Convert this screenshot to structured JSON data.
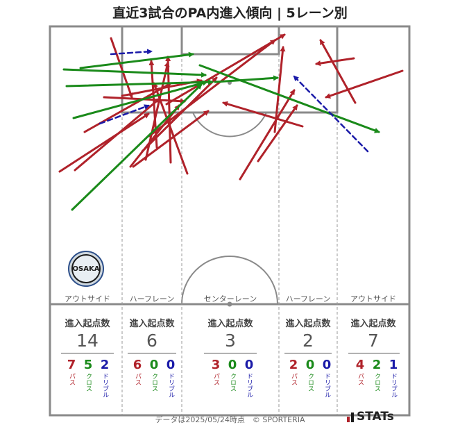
{
  "title": "直近3試合のPA内進入傾向 | 5レーン別",
  "lanes": [
    {
      "label": "アウトサイド",
      "head": "進入起点数",
      "total": "14",
      "pass": "7",
      "cross": "5",
      "dribble": "2"
    },
    {
      "label": "ハーフレーン",
      "head": "進入起点数",
      "total": "6",
      "pass": "6",
      "cross": "0",
      "dribble": "0"
    },
    {
      "label": "センターレーン",
      "head": "進入起点数",
      "total": "3",
      "pass": "3",
      "cross": "0",
      "dribble": "0"
    },
    {
      "label": "ハーフレーン",
      "head": "進入起点数",
      "total": "2",
      "pass": "2",
      "cross": "0",
      "dribble": "0"
    },
    {
      "label": "アウトサイド",
      "head": "進入起点数",
      "total": "7",
      "pass": "4",
      "cross": "2",
      "dribble": "1"
    }
  ],
  "legend": {
    "pass": "パス",
    "cross": "クロス",
    "dribble": "ドリブル"
  },
  "colors": {
    "pass": "#b0222a",
    "cross": "#1a8a1a",
    "dribble": "#1a1aa8",
    "pitch_line": "#8a8a8a"
  },
  "badge_text": "OSAKA",
  "footer": "データは2025/05/24時点　© SPORTERIA",
  "brand": "STATs",
  "arrows": [
    {
      "type": "pass",
      "from": [
        86,
        247
      ],
      "to": [
        214,
        164
      ]
    },
    {
      "type": "pass",
      "from": [
        108,
        245
      ],
      "to": [
        230,
        142
      ]
    },
    {
      "type": "pass",
      "from": [
        122,
        190
      ],
      "to": [
        246,
        120
      ]
    },
    {
      "type": "pass",
      "from": [
        160,
        55
      ],
      "to": [
        190,
        140
      ]
    },
    {
      "type": "pass",
      "from": [
        150,
        140
      ],
      "to": [
        266,
        146
      ]
    },
    {
      "type": "pass",
      "from": [
        176,
        138
      ],
      "to": [
        290,
        116
      ]
    },
    {
      "type": "pass",
      "from": [
        192,
        240
      ],
      "to": [
        300,
        160
      ]
    },
    {
      "type": "pass",
      "from": [
        205,
        218
      ],
      "to": [
        312,
        112
      ]
    },
    {
      "type": "pass",
      "from": [
        210,
        230
      ],
      "to": [
        242,
        90
      ]
    },
    {
      "type": "pass",
      "from": [
        246,
        234
      ],
      "to": [
        242,
        82
      ]
    },
    {
      "type": "pass",
      "from": [
        226,
        212
      ],
      "to": [
        218,
        88
      ]
    },
    {
      "type": "pass",
      "from": [
        270,
        250
      ],
      "to": [
        222,
        120
      ]
    },
    {
      "type": "pass",
      "from": [
        188,
        240
      ],
      "to": [
        258,
        152
      ]
    },
    {
      "type": "pass",
      "from": [
        215,
        196
      ],
      "to": [
        396,
        58
      ]
    },
    {
      "type": "pass",
      "from": [
        240,
        150
      ],
      "to": [
        410,
        50
      ]
    },
    {
      "type": "pass",
      "from": [
        346,
        258
      ],
      "to": [
        424,
        130
      ]
    },
    {
      "type": "pass",
      "from": [
        372,
        232
      ],
      "to": [
        428,
        152
      ]
    },
    {
      "type": "pass",
      "from": [
        396,
        190
      ],
      "to": [
        408,
        68
      ]
    },
    {
      "type": "pass",
      "from": [
        512,
        148
      ],
      "to": [
        462,
        58
      ]
    },
    {
      "type": "pass",
      "from": [
        580,
        102
      ],
      "to": [
        470,
        140
      ]
    },
    {
      "type": "pass",
      "from": [
        510,
        84
      ],
      "to": [
        456,
        92
      ]
    },
    {
      "type": "pass",
      "from": [
        436,
        182
      ],
      "to": [
        322,
        148
      ]
    },
    {
      "type": "cross",
      "from": [
        92,
        100
      ],
      "to": [
        296,
        108
      ]
    },
    {
      "type": "cross",
      "from": [
        116,
        98
      ],
      "to": [
        278,
        78
      ]
    },
    {
      "type": "cross",
      "from": [
        96,
        124
      ],
      "to": [
        306,
        118
      ]
    },
    {
      "type": "cross",
      "from": [
        104,
        302
      ],
      "to": [
        290,
        122
      ]
    },
    {
      "type": "cross",
      "from": [
        106,
        170
      ],
      "to": [
        298,
        118
      ]
    },
    {
      "type": "cross",
      "from": [
        288,
        94
      ],
      "to": [
        546,
        190
      ]
    },
    {
      "type": "cross",
      "from": [
        310,
        118
      ],
      "to": [
        400,
        112
      ]
    },
    {
      "type": "dribble",
      "from": [
        160,
        78
      ],
      "to": [
        218,
        74
      ]
    },
    {
      "type": "dribble",
      "from": [
        144,
        178
      ],
      "to": [
        214,
        152
      ]
    },
    {
      "type": "dribble",
      "from": [
        530,
        218
      ],
      "to": [
        424,
        110
      ]
    }
  ]
}
